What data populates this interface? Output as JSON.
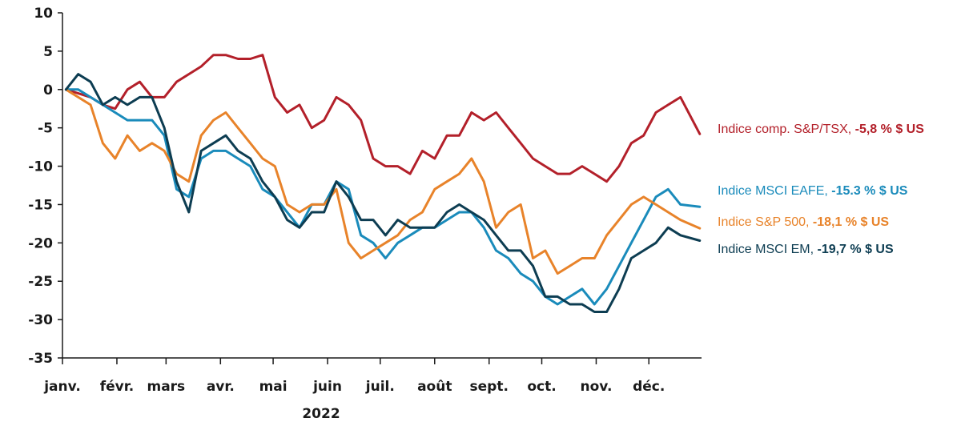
{
  "chart_data": {
    "type": "line",
    "title": "",
    "xlabel": "2022",
    "ylabel": "",
    "ylim": [
      -35,
      10
    ],
    "yticks": [
      10,
      5,
      0,
      -5,
      -10,
      -15,
      -20,
      -25,
      -30,
      -35
    ],
    "x_start": "2022-01-01",
    "x_end": "2022-12-31",
    "months": [
      "janv.",
      "févr.",
      "mars",
      "avr.",
      "mai",
      "juin",
      "juil.",
      "août",
      "sept.",
      "oct.",
      "nov.",
      "déc."
    ],
    "grid": false,
    "legend": "right",
    "series": [
      {
        "name": "Indice comp. S&P/TSX,",
        "value_label": "-5,8 % $ US",
        "color": "#b3202a",
        "x": [
          "2022-01-03",
          "2022-01-10",
          "2022-01-17",
          "2022-01-24",
          "2022-01-31",
          "2022-02-07",
          "2022-02-14",
          "2022-02-21",
          "2022-02-28",
          "2022-03-07",
          "2022-03-14",
          "2022-03-21",
          "2022-03-28",
          "2022-04-04",
          "2022-04-11",
          "2022-04-18",
          "2022-04-25",
          "2022-05-02",
          "2022-05-09",
          "2022-05-16",
          "2022-05-23",
          "2022-05-30",
          "2022-06-06",
          "2022-06-13",
          "2022-06-20",
          "2022-06-27",
          "2022-07-04",
          "2022-07-11",
          "2022-07-18",
          "2022-07-25",
          "2022-08-01",
          "2022-08-08",
          "2022-08-15",
          "2022-08-22",
          "2022-08-29",
          "2022-09-05",
          "2022-09-12",
          "2022-09-19",
          "2022-09-26",
          "2022-10-03",
          "2022-10-10",
          "2022-10-17",
          "2022-10-24",
          "2022-10-31",
          "2022-11-07",
          "2022-11-14",
          "2022-11-21",
          "2022-11-28",
          "2022-12-05",
          "2022-12-12",
          "2022-12-19",
          "2022-12-30"
        ],
        "values": [
          0,
          -0.5,
          -1,
          -2,
          -2.5,
          0,
          1,
          -1,
          -1,
          1,
          2,
          3,
          4.5,
          4.5,
          4,
          4,
          4.5,
          -1,
          -3,
          -2,
          -5,
          -4,
          -1,
          -2,
          -4,
          -9,
          -10,
          -10,
          -11,
          -8,
          -9,
          -6,
          -6,
          -3,
          -4,
          -3,
          -5,
          -7,
          -9,
          -10,
          -11,
          -11,
          -10,
          -11,
          -12,
          -10,
          -7,
          -6,
          -3,
          -2,
          -1,
          -5.8
        ]
      },
      {
        "name": "Indice MSCI EAFE,",
        "value_label": "-15.3 % $ US",
        "color": "#1a8bbb",
        "x": [
          "2022-01-03",
          "2022-01-10",
          "2022-01-17",
          "2022-01-24",
          "2022-01-31",
          "2022-02-07",
          "2022-02-14",
          "2022-02-21",
          "2022-02-28",
          "2022-03-07",
          "2022-03-14",
          "2022-03-21",
          "2022-03-28",
          "2022-04-04",
          "2022-04-11",
          "2022-04-18",
          "2022-04-25",
          "2022-05-02",
          "2022-05-09",
          "2022-05-16",
          "2022-05-23",
          "2022-05-30",
          "2022-06-06",
          "2022-06-13",
          "2022-06-20",
          "2022-06-27",
          "2022-07-04",
          "2022-07-11",
          "2022-07-18",
          "2022-07-25",
          "2022-08-01",
          "2022-08-08",
          "2022-08-15",
          "2022-08-22",
          "2022-08-29",
          "2022-09-05",
          "2022-09-12",
          "2022-09-19",
          "2022-09-26",
          "2022-10-03",
          "2022-10-10",
          "2022-10-17",
          "2022-10-24",
          "2022-10-31",
          "2022-11-07",
          "2022-11-14",
          "2022-11-21",
          "2022-11-28",
          "2022-12-05",
          "2022-12-12",
          "2022-12-19",
          "2022-12-30"
        ],
        "values": [
          0,
          0,
          -1,
          -2,
          -3,
          -4,
          -4,
          -4,
          -6,
          -13,
          -14,
          -9,
          -8,
          -8,
          -9,
          -10,
          -13,
          -14,
          -16,
          -18,
          -15,
          -15,
          -12,
          -13,
          -19,
          -20,
          -22,
          -20,
          -19,
          -18,
          -18,
          -17,
          -16,
          -16,
          -18,
          -21,
          -22,
          -24,
          -25,
          -27,
          -28,
          -27,
          -26,
          -28,
          -26,
          -23,
          -20,
          -17,
          -14,
          -13,
          -15,
          -15.3
        ]
      },
      {
        "name": "Indice S&P 500,",
        "value_label": "-18,1 % $ US",
        "color": "#e8832a",
        "x": [
          "2022-01-03",
          "2022-01-10",
          "2022-01-17",
          "2022-01-24",
          "2022-01-31",
          "2022-02-07",
          "2022-02-14",
          "2022-02-21",
          "2022-02-28",
          "2022-03-07",
          "2022-03-14",
          "2022-03-21",
          "2022-03-28",
          "2022-04-04",
          "2022-04-11",
          "2022-04-18",
          "2022-04-25",
          "2022-05-02",
          "2022-05-09",
          "2022-05-16",
          "2022-05-23",
          "2022-05-30",
          "2022-06-06",
          "2022-06-13",
          "2022-06-20",
          "2022-06-27",
          "2022-07-04",
          "2022-07-11",
          "2022-07-18",
          "2022-07-25",
          "2022-08-01",
          "2022-08-08",
          "2022-08-15",
          "2022-08-22",
          "2022-08-29",
          "2022-09-05",
          "2022-09-12",
          "2022-09-19",
          "2022-09-26",
          "2022-10-03",
          "2022-10-10",
          "2022-10-17",
          "2022-10-24",
          "2022-10-31",
          "2022-11-07",
          "2022-11-14",
          "2022-11-21",
          "2022-11-28",
          "2022-12-05",
          "2022-12-12",
          "2022-12-19",
          "2022-12-30"
        ],
        "values": [
          0,
          -1,
          -2,
          -7,
          -9,
          -6,
          -8,
          -7,
          -8,
          -11,
          -12,
          -6,
          -4,
          -3,
          -5,
          -7,
          -9,
          -10,
          -15,
          -16,
          -15,
          -15,
          -13,
          -20,
          -22,
          -21,
          -20,
          -19,
          -17,
          -16,
          -13,
          -12,
          -11,
          -9,
          -12,
          -18,
          -16,
          -15,
          -22,
          -21,
          -24,
          -23,
          -22,
          -22,
          -19,
          -17,
          -15,
          -14,
          -15,
          -16,
          -17,
          -18.1
        ]
      },
      {
        "name": "Indice MSCI EM,",
        "value_label": "-19,7 % $ US",
        "color": "#0d3d52",
        "x": [
          "2022-01-03",
          "2022-01-10",
          "2022-01-17",
          "2022-01-24",
          "2022-01-31",
          "2022-02-07",
          "2022-02-14",
          "2022-02-21",
          "2022-02-28",
          "2022-03-07",
          "2022-03-14",
          "2022-03-21",
          "2022-03-28",
          "2022-04-04",
          "2022-04-11",
          "2022-04-18",
          "2022-04-25",
          "2022-05-02",
          "2022-05-09",
          "2022-05-16",
          "2022-05-23",
          "2022-05-30",
          "2022-06-06",
          "2022-06-13",
          "2022-06-20",
          "2022-06-27",
          "2022-07-04",
          "2022-07-11",
          "2022-07-18",
          "2022-07-25",
          "2022-08-01",
          "2022-08-08",
          "2022-08-15",
          "2022-08-22",
          "2022-08-29",
          "2022-09-05",
          "2022-09-12",
          "2022-09-19",
          "2022-09-26",
          "2022-10-03",
          "2022-10-10",
          "2022-10-17",
          "2022-10-24",
          "2022-10-31",
          "2022-11-07",
          "2022-11-14",
          "2022-11-21",
          "2022-11-28",
          "2022-12-05",
          "2022-12-12",
          "2022-12-19",
          "2022-12-30"
        ],
        "values": [
          0,
          2,
          1,
          -2,
          -1,
          -2,
          -1,
          -1,
          -5,
          -12,
          -16,
          -8,
          -7,
          -6,
          -8,
          -9,
          -12,
          -14,
          -17,
          -18,
          -16,
          -16,
          -12,
          -14,
          -17,
          -17,
          -19,
          -17,
          -18,
          -18,
          -18,
          -16,
          -15,
          -16,
          -17,
          -19,
          -21,
          -21,
          -23,
          -27,
          -27,
          -28,
          -28,
          -29,
          -29,
          -26,
          -22,
          -21,
          -20,
          -18,
          -19,
          -19.7
        ]
      }
    ]
  }
}
